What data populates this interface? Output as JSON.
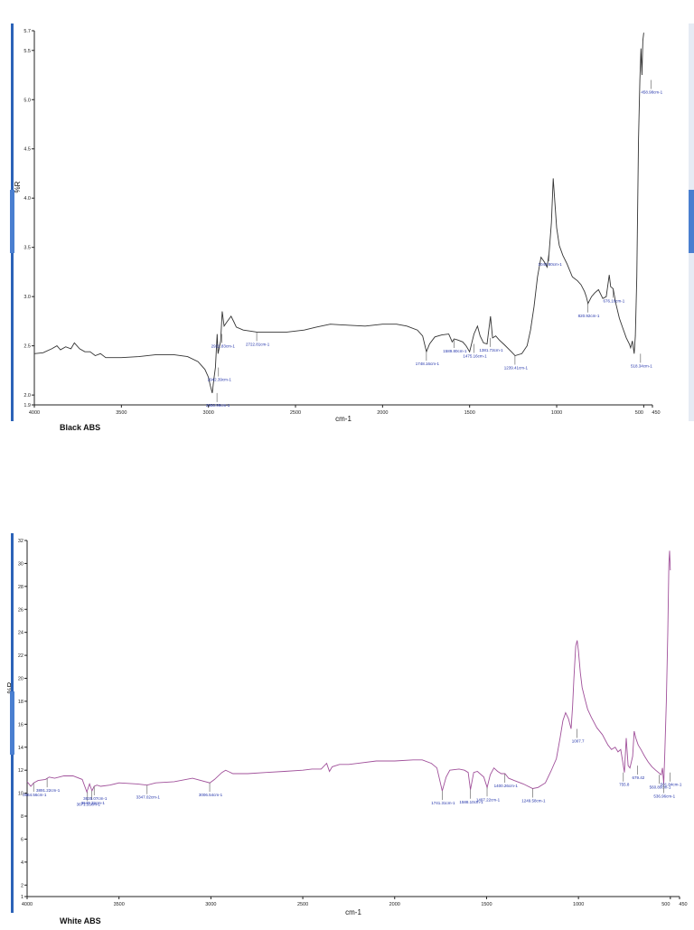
{
  "chart_data": [
    {
      "type": "line",
      "caption": "Black ABS",
      "xlabel": "cm-1",
      "ylabel": "%R",
      "xlim": [
        4000,
        450
      ],
      "ylim": [
        1.9,
        5.7
      ],
      "line_color": "#333333",
      "x_ticks": [
        {
          "value": 4000,
          "label": "4000"
        },
        {
          "value": 3500,
          "label": "3500"
        },
        {
          "value": 3000,
          "label": "3000"
        },
        {
          "value": 2500,
          "label": "2500"
        },
        {
          "value": 2000,
          "label": "2000"
        },
        {
          "value": 1500,
          "label": "1500"
        },
        {
          "value": 1000,
          "label": "1000"
        },
        {
          "value": 500,
          "label": "500"
        },
        {
          "value": 450,
          "label": "450"
        }
      ],
      "y_ticks": [
        {
          "value": 1.9,
          "label": "1.9"
        },
        {
          "value": 2.0,
          "label": "2.0"
        },
        {
          "value": 2.5,
          "label": "2.5"
        },
        {
          "value": 3.0,
          "label": "3.0"
        },
        {
          "value": 3.5,
          "label": "3.5"
        },
        {
          "value": 4.0,
          "label": "4.0"
        },
        {
          "value": 4.5,
          "label": "4.5"
        },
        {
          "value": 5.0,
          "label": "5.0"
        },
        {
          "value": 5.5,
          "label": "5.5"
        },
        {
          "value": 5.7,
          "label": "5.7"
        }
      ],
      "points": [
        [
          4000,
          2.42
        ],
        [
          3950,
          2.43
        ],
        [
          3900,
          2.47
        ],
        [
          3870,
          2.5
        ],
        [
          3850,
          2.46
        ],
        [
          3820,
          2.49
        ],
        [
          3790,
          2.47
        ],
        [
          3770,
          2.53
        ],
        [
          3740,
          2.47
        ],
        [
          3710,
          2.44
        ],
        [
          3680,
          2.44
        ],
        [
          3650,
          2.4
        ],
        [
          3620,
          2.42
        ],
        [
          3590,
          2.38
        ],
        [
          3560,
          2.38
        ],
        [
          3500,
          2.38
        ],
        [
          3400,
          2.39
        ],
        [
          3300,
          2.41
        ],
        [
          3200,
          2.41
        ],
        [
          3120,
          2.39
        ],
        [
          3060,
          2.34
        ],
        [
          3020,
          2.26
        ],
        [
          3000,
          2.18
        ],
        [
          2990,
          2.1
        ],
        [
          2978,
          2.02
        ],
        [
          2970,
          2.15
        ],
        [
          2960,
          2.28
        ],
        [
          2950,
          2.62
        ],
        [
          2945,
          2.42
        ],
        [
          2930,
          2.55
        ],
        [
          2921,
          2.85
        ],
        [
          2910,
          2.7
        ],
        [
          2895,
          2.74
        ],
        [
          2870,
          2.8
        ],
        [
          2853,
          2.74
        ],
        [
          2840,
          2.69
        ],
        [
          2800,
          2.66
        ],
        [
          2760,
          2.65
        ],
        [
          2722,
          2.64
        ],
        [
          2650,
          2.64
        ],
        [
          2550,
          2.64
        ],
        [
          2450,
          2.66
        ],
        [
          2380,
          2.69
        ],
        [
          2300,
          2.72
        ],
        [
          2200,
          2.71
        ],
        [
          2100,
          2.7
        ],
        [
          2000,
          2.72
        ],
        [
          1920,
          2.72
        ],
        [
          1860,
          2.7
        ],
        [
          1800,
          2.66
        ],
        [
          1770,
          2.6
        ],
        [
          1748,
          2.44
        ],
        [
          1730,
          2.52
        ],
        [
          1700,
          2.59
        ],
        [
          1660,
          2.61
        ],
        [
          1620,
          2.62
        ],
        [
          1600,
          2.54
        ],
        [
          1589,
          2.57
        ],
        [
          1570,
          2.56
        ],
        [
          1540,
          2.54
        ],
        [
          1520,
          2.5
        ],
        [
          1500,
          2.44
        ],
        [
          1475,
          2.62
        ],
        [
          1455,
          2.7
        ],
        [
          1440,
          2.6
        ],
        [
          1420,
          2.53
        ],
        [
          1400,
          2.52
        ],
        [
          1380,
          2.8
        ],
        [
          1368,
          2.58
        ],
        [
          1350,
          2.6
        ],
        [
          1330,
          2.56
        ],
        [
          1300,
          2.51
        ],
        [
          1260,
          2.44
        ],
        [
          1239,
          2.4
        ],
        [
          1200,
          2.42
        ],
        [
          1170,
          2.5
        ],
        [
          1150,
          2.66
        ],
        [
          1130,
          2.9
        ],
        [
          1110,
          3.2
        ],
        [
          1090,
          3.4
        ],
        [
          1070,
          3.35
        ],
        [
          1055,
          3.3
        ],
        [
          1043,
          3.45
        ],
        [
          1030,
          3.75
        ],
        [
          1020,
          4.2
        ],
        [
          1010,
          3.95
        ],
        [
          1000,
          3.7
        ],
        [
          985,
          3.52
        ],
        [
          965,
          3.42
        ],
        [
          940,
          3.33
        ],
        [
          910,
          3.2
        ],
        [
          880,
          3.16
        ],
        [
          860,
          3.12
        ],
        [
          840,
          3.05
        ],
        [
          830,
          3.0
        ],
        [
          820,
          2.93
        ],
        [
          800,
          3.0
        ],
        [
          780,
          3.04
        ],
        [
          760,
          3.07
        ],
        [
          735,
          2.98
        ],
        [
          715,
          3.0
        ],
        [
          698,
          3.22
        ],
        [
          690,
          3.1
        ],
        [
          676,
          3.08
        ],
        [
          660,
          2.93
        ],
        [
          640,
          2.78
        ],
        [
          620,
          2.68
        ],
        [
          600,
          2.58
        ],
        [
          583,
          2.52
        ],
        [
          575,
          2.48
        ],
        [
          565,
          2.55
        ],
        [
          555,
          2.42
        ],
        [
          548,
          2.6
        ],
        [
          540,
          3.2
        ],
        [
          530,
          4.6
        ],
        [
          522,
          5.2
        ],
        [
          516,
          5.52
        ],
        [
          510,
          5.25
        ],
        [
          505,
          5.6
        ],
        [
          500,
          5.68
        ]
      ],
      "peak_labels": [
        {
          "x": 2950.99,
          "y": 2.02,
          "text": "2950.99cm-1"
        },
        {
          "x": 2921.83,
          "y": 2.62,
          "text": "2921.83cm-1"
        },
        {
          "x": 2942.39,
          "y": 2.28,
          "text": "2942.39cm-1"
        },
        {
          "x": 2722.81,
          "y": 2.64,
          "text": "2722.81cm-1"
        },
        {
          "x": 1748.16,
          "y": 2.44,
          "text": "1748.16cm-1"
        },
        {
          "x": 1589.8,
          "y": 2.57,
          "text": "1589.80cm-1"
        },
        {
          "x": 1475.16,
          "y": 2.52,
          "text": "1475.16cm-1"
        },
        {
          "x": 1381.73,
          "y": 2.58,
          "text": "1381.73cm-1"
        },
        {
          "x": 1239.41,
          "y": 2.4,
          "text": "1239.41cm-1"
        },
        {
          "x": 1043.8,
          "y": 3.45,
          "text": "1043.80cm-1"
        },
        {
          "x": 820.92,
          "y": 2.93,
          "text": "820.92cm-1"
        },
        {
          "x": 676.16,
          "y": 3.08,
          "text": "676.16cm-1"
        },
        {
          "x": 518.34,
          "y": 2.42,
          "text": "518.34cm-1"
        },
        {
          "x": 458.98,
          "y": 5.2,
          "text": "458.98cm-1"
        }
      ]
    },
    {
      "type": "line",
      "caption": "White ABS",
      "xlabel": "cm-1",
      "ylabel": "%R",
      "xlim": [
        4000,
        450
      ],
      "ylim": [
        1,
        32
      ],
      "line_color": "#a0509a",
      "x_ticks": [
        {
          "value": 4000,
          "label": "4000"
        },
        {
          "value": 3500,
          "label": "3500"
        },
        {
          "value": 3000,
          "label": "3000"
        },
        {
          "value": 2500,
          "label": "2500"
        },
        {
          "value": 2000,
          "label": "2000"
        },
        {
          "value": 1500,
          "label": "1500"
        },
        {
          "value": 1000,
          "label": "1000"
        },
        {
          "value": 500,
          "label": "500"
        },
        {
          "value": 450,
          "label": "450"
        }
      ],
      "y_ticks": [
        {
          "value": 1,
          "label": "1"
        },
        {
          "value": 2,
          "label": "2"
        },
        {
          "value": 4,
          "label": "4"
        },
        {
          "value": 6,
          "label": "6"
        },
        {
          "value": 8,
          "label": "8"
        },
        {
          "value": 10,
          "label": "10"
        },
        {
          "value": 12,
          "label": "12"
        },
        {
          "value": 14,
          "label": "14"
        },
        {
          "value": 16,
          "label": "16"
        },
        {
          "value": 18,
          "label": "18"
        },
        {
          "value": 20,
          "label": "20"
        },
        {
          "value": 22,
          "label": "22"
        },
        {
          "value": 24,
          "label": "24"
        },
        {
          "value": 26,
          "label": "26"
        },
        {
          "value": 28,
          "label": "28"
        },
        {
          "value": 30,
          "label": "30"
        },
        {
          "value": 32,
          "label": "32"
        }
      ],
      "points": [
        [
          4000,
          11.0
        ],
        [
          3980,
          10.6
        ],
        [
          3964,
          10.9
        ],
        [
          3940,
          11.1
        ],
        [
          3900,
          11.2
        ],
        [
          3880,
          11.4
        ],
        [
          3850,
          11.3
        ],
        [
          3800,
          11.5
        ],
        [
          3750,
          11.5
        ],
        [
          3700,
          11.2
        ],
        [
          3675,
          10.1
        ],
        [
          3660,
          10.8
        ],
        [
          3647,
          10.2
        ],
        [
          3635,
          10.6
        ],
        [
          3620,
          10.7
        ],
        [
          3600,
          10.6
        ],
        [
          3550,
          10.7
        ],
        [
          3500,
          10.9
        ],
        [
          3400,
          10.8
        ],
        [
          3347,
          10.7
        ],
        [
          3300,
          10.9
        ],
        [
          3200,
          11.0
        ],
        [
          3100,
          11.3
        ],
        [
          3006,
          10.9
        ],
        [
          2980,
          11.2
        ],
        [
          2940,
          11.8
        ],
        [
          2920,
          12.0
        ],
        [
          2880,
          11.7
        ],
        [
          2800,
          11.7
        ],
        [
          2700,
          11.8
        ],
        [
          2600,
          11.9
        ],
        [
          2500,
          12.0
        ],
        [
          2450,
          12.1
        ],
        [
          2400,
          12.1
        ],
        [
          2370,
          12.6
        ],
        [
          2355,
          11.9
        ],
        [
          2340,
          12.3
        ],
        [
          2300,
          12.5
        ],
        [
          2250,
          12.5
        ],
        [
          2200,
          12.6
        ],
        [
          2100,
          12.8
        ],
        [
          2000,
          12.8
        ],
        [
          1900,
          12.9
        ],
        [
          1850,
          12.9
        ],
        [
          1800,
          12.6
        ],
        [
          1770,
          12.2
        ],
        [
          1741,
          10.2
        ],
        [
          1720,
          11.4
        ],
        [
          1700,
          12.0
        ],
        [
          1650,
          12.1
        ],
        [
          1620,
          12.0
        ],
        [
          1600,
          11.8
        ],
        [
          1588,
          10.3
        ],
        [
          1570,
          11.8
        ],
        [
          1550,
          11.9
        ],
        [
          1515,
          11.4
        ],
        [
          1497,
          10.5
        ],
        [
          1480,
          11.6
        ],
        [
          1460,
          12.2
        ],
        [
          1440,
          11.9
        ],
        [
          1420,
          11.7
        ],
        [
          1400,
          11.7
        ],
        [
          1380,
          11.3
        ],
        [
          1350,
          11.1
        ],
        [
          1300,
          10.8
        ],
        [
          1249,
          10.4
        ],
        [
          1220,
          10.5
        ],
        [
          1180,
          10.9
        ],
        [
          1150,
          11.9
        ],
        [
          1120,
          13.0
        ],
        [
          1100,
          14.8
        ],
        [
          1085,
          16.3
        ],
        [
          1070,
          17.0
        ],
        [
          1055,
          16.5
        ],
        [
          1040,
          15.6
        ],
        [
          1032,
          17.5
        ],
        [
          1025,
          20.0
        ],
        [
          1015,
          22.8
        ],
        [
          1007,
          23.3
        ],
        [
          1000,
          22.4
        ],
        [
          990,
          20.5
        ],
        [
          980,
          19.2
        ],
        [
          965,
          18.2
        ],
        [
          950,
          17.3
        ],
        [
          930,
          16.6
        ],
        [
          900,
          15.7
        ],
        [
          870,
          15.1
        ],
        [
          840,
          14.2
        ],
        [
          820,
          13.8
        ],
        [
          800,
          14.0
        ],
        [
          785,
          13.6
        ],
        [
          770,
          13.8
        ],
        [
          760,
          12.8
        ],
        [
          750,
          11.8
        ],
        [
          740,
          14.8
        ],
        [
          730,
          12.4
        ],
        [
          720,
          12.2
        ],
        [
          705,
          13.2
        ],
        [
          697,
          15.4
        ],
        [
          688,
          14.8
        ],
        [
          675,
          14.2
        ],
        [
          660,
          13.8
        ],
        [
          640,
          13.2
        ],
        [
          620,
          12.7
        ],
        [
          600,
          12.3
        ],
        [
          580,
          12.0
        ],
        [
          565,
          11.8
        ],
        [
          550,
          11.6
        ],
        [
          543,
          12.2
        ],
        [
          536,
          10.8
        ],
        [
          530,
          13.5
        ],
        [
          522,
          18.0
        ],
        [
          514,
          24.0
        ],
        [
          508,
          30.0
        ],
        [
          504,
          31.1
        ],
        [
          500,
          29.4
        ]
      ],
      "peak_labels": [
        {
          "x": 3964.56,
          "y": 10.9,
          "text": "3964.56cm-1"
        },
        {
          "x": 3891.22,
          "y": 11.3,
          "text": "3891.22cm-1"
        },
        {
          "x": 3671.55,
          "y": 10.1,
          "text": "3671.55cm-1"
        },
        {
          "x": 3647.39,
          "y": 10.2,
          "text": "3647.39cm-1"
        },
        {
          "x": 3635.07,
          "y": 10.6,
          "text": "3635.07cm-1"
        },
        {
          "x": 3347.02,
          "y": 10.7,
          "text": "3347.02cm-1"
        },
        {
          "x": 3006.54,
          "y": 10.9,
          "text": "3006.54cm-1"
        },
        {
          "x": 1741.31,
          "y": 10.2,
          "text": "1741.31cm-1"
        },
        {
          "x": 1588.1,
          "y": 10.3,
          "text": "1588.10cm-1"
        },
        {
          "x": 1497.22,
          "y": 10.5,
          "text": "1497.22cm-1"
        },
        {
          "x": 1400.26,
          "y": 11.7,
          "text": "1400.26cm-1"
        },
        {
          "x": 1249.58,
          "y": 10.4,
          "text": "1249.58cm-1"
        },
        {
          "x": 1007.7,
          "y": 15.6,
          "text": "1007.7"
        },
        {
          "x": 755.8,
          "y": 11.8,
          "text": "755.8"
        },
        {
          "x": 679.42,
          "y": 12.4,
          "text": "679.42"
        },
        {
          "x": 560.8,
          "y": 11.6,
          "text": "560.80cm-1"
        },
        {
          "x": 536.96,
          "y": 10.8,
          "text": "536.96cm-1"
        },
        {
          "x": 501.84,
          "y": 11.8,
          "text": "501.84cm-1"
        }
      ]
    }
  ]
}
